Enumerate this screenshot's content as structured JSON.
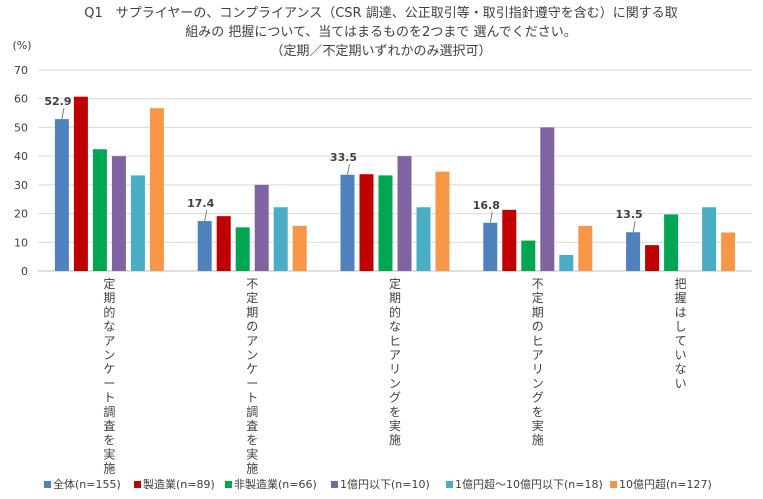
{
  "chart_data": {
    "type": "bar",
    "title_lines": [
      "Q1　サプライヤーの、コンプライアンス（CSR 調達、公正取引等・取引指針遵守を含む）に関する取",
      "組みの 把握について、当てはまるものを2つまで 選んでください。",
      "（定期／不定期いずれかのみ選択可）"
    ],
    "ylabel": "(%)",
    "ylim": [
      0,
      70
    ],
    "yticks": [
      0,
      10,
      20,
      30,
      40,
      50,
      60,
      70
    ],
    "categories": [
      "定期的なアンケート調査を実施",
      "不定期のアンケート調査を実施",
      "定期的なヒアリングを実施",
      "不定期のヒアリングを実施",
      "把握はしていない"
    ],
    "series": [
      {
        "name": "全体(n=155)",
        "color": "#4f81bd",
        "values": [
          52.9,
          17.4,
          33.5,
          16.8,
          13.5
        ]
      },
      {
        "name": "製造業(n=89)",
        "color": "#c00000",
        "values": [
          60.7,
          19.1,
          33.7,
          21.3,
          9.0
        ]
      },
      {
        "name": "非製造業(n=66)",
        "color": "#00a651",
        "values": [
          42.4,
          15.2,
          33.3,
          10.6,
          19.7
        ]
      },
      {
        "name": "1億円以下(n=10)",
        "color": "#8064a2",
        "values": [
          40.0,
          30.0,
          40.0,
          50.0,
          0.0
        ]
      },
      {
        "name": "1億円超～10億円以下(n=18)",
        "color": "#4bacc6",
        "values": [
          33.3,
          22.2,
          22.2,
          5.6,
          22.2
        ]
      },
      {
        "name": "10億円超(n=127)",
        "color": "#f79646",
        "values": [
          56.7,
          15.7,
          34.6,
          15.7,
          13.4
        ]
      }
    ],
    "data_labels": [
      "52.9",
      "17.4",
      "33.5",
      "16.8",
      "13.5"
    ],
    "grid": true,
    "legend_position": "bottom"
  }
}
